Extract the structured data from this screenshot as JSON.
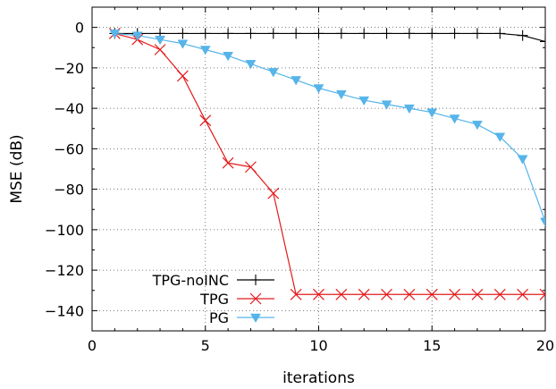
{
  "chart_data": {
    "type": "line",
    "title": "",
    "xlabel": "iterations",
    "ylabel": "MSE (dB)",
    "xlim": [
      0,
      20
    ],
    "ylim": [
      -150,
      10
    ],
    "xticks": [
      0,
      5,
      10,
      15,
      20
    ],
    "yticks": [
      0,
      -20,
      -40,
      -60,
      -80,
      -100,
      -120,
      -140
    ],
    "xtick_labels": [
      "0",
      "5",
      "10",
      "15",
      "20"
    ],
    "ytick_labels": [
      "0",
      "−20",
      "−40",
      "−60",
      "−80",
      "−100",
      "−120",
      "−140"
    ],
    "grid": true,
    "legend_position": "bottom-left",
    "series": [
      {
        "name": "TPG-noINC",
        "color": "#000000",
        "marker": "plus",
        "x": [
          1,
          2,
          3,
          4,
          5,
          6,
          7,
          8,
          9,
          10,
          11,
          12,
          13,
          14,
          15,
          16,
          17,
          18,
          19,
          20
        ],
        "y": [
          -3,
          -3,
          -3,
          -3,
          -3,
          -3,
          -3,
          -3,
          -3,
          -3,
          -3,
          -3,
          -3,
          -3,
          -3,
          -3,
          -3,
          -3,
          -4,
          -7
        ]
      },
      {
        "name": "TPG",
        "color": "#e41a1c",
        "marker": "cross",
        "x": [
          1,
          2,
          3,
          4,
          5,
          6,
          7,
          8,
          9,
          10,
          11,
          12,
          13,
          14,
          15,
          16,
          17,
          18,
          19,
          20
        ],
        "y": [
          -3,
          -6,
          -11,
          -24,
          -46,
          -67,
          -69,
          -82,
          -132,
          -132,
          -132,
          -132,
          -132,
          -132,
          -132,
          -132,
          -132,
          -132,
          -132,
          -132
        ]
      },
      {
        "name": "PG",
        "color": "#56b4e9",
        "marker": "triangle-down",
        "x": [
          1,
          2,
          3,
          4,
          5,
          6,
          7,
          8,
          9,
          10,
          11,
          12,
          13,
          14,
          15,
          16,
          17,
          18,
          19,
          20
        ],
        "y": [
          -3,
          -4,
          -6,
          -8,
          -11,
          -14,
          -18,
          -22,
          -26,
          -30,
          -33,
          -36,
          -38,
          -40,
          -42,
          -45,
          -48,
          -54,
          -65,
          -96
        ]
      }
    ]
  }
}
